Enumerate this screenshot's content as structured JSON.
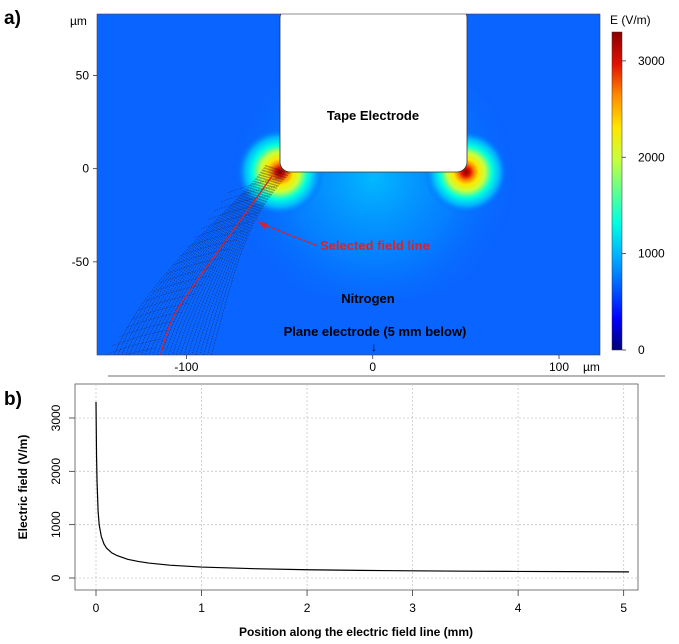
{
  "panel_a": {
    "label": "a)",
    "x_unit": "µm",
    "y_unit": "µm",
    "tape_label": "Tape Electrode",
    "gas_label": "Nitrogen",
    "plane_label": "Plane electrode (5 mm below)",
    "arrow_glyph": "↓",
    "field_line_label": "Selected field line",
    "field_line_color": "#e02020",
    "colorbar_title": "E (V/m)"
  },
  "panel_b": {
    "label": "b)",
    "line_color": "#000000",
    "grid_color": "#c8c8c8"
  },
  "chart_data": [
    {
      "type": "heatmap",
      "title": "",
      "xlabel": "",
      "ylabel": "",
      "x_unit": "µm",
      "y_unit": "µm",
      "xlim": [
        -148,
        122
      ],
      "ylim": [
        -100,
        83
      ],
      "x_ticks": [
        -100,
        0,
        100
      ],
      "y_ticks": [
        50,
        0,
        -50
      ],
      "x_tick_labels": [
        "-100",
        "0",
        "100"
      ],
      "y_tick_labels": [
        "50",
        "0",
        "-50"
      ],
      "colorbar": {
        "title": "E (V/m)",
        "range": [
          0,
          3300
        ],
        "ticks": [
          3000,
          2000,
          1000,
          0
        ],
        "colors": [
          "#00007a",
          "#0000ff",
          "#0060ff",
          "#00b4ff",
          "#00ffe0",
          "#60ff90",
          "#c8ff3c",
          "#ffe600",
          "#ff8c00",
          "#e01000",
          "#8a0000"
        ]
      },
      "background_field_value": 400,
      "hot_spots": [
        {
          "x": -48,
          "y": 0,
          "peak": 3300
        },
        {
          "x": 48,
          "y": 0,
          "peak": 3000
        }
      ],
      "tape_electrode": {
        "x_range": [
          -50,
          50
        ],
        "y_range": [
          0,
          83
        ]
      },
      "grid": false
    },
    {
      "type": "line",
      "title": "",
      "xlabel": "Position along the electric field line (mm)",
      "ylabel": "Electric field (V/m)",
      "xlim": [
        0,
        5.1
      ],
      "ylim": [
        0,
        3300
      ],
      "x_ticks": [
        0,
        1,
        2,
        3,
        4,
        5
      ],
      "y_ticks": [
        0,
        1000,
        2000,
        3000
      ],
      "grid": true,
      "series": [
        {
          "x": [
            0,
            0.005,
            0.01,
            0.02,
            0.03,
            0.05,
            0.075,
            0.1,
            0.15,
            0.2,
            0.3,
            0.4,
            0.5,
            0.7,
            1.0,
            1.5,
            2.0,
            2.5,
            3.0,
            3.5,
            4.0,
            4.5,
            5.05
          ],
          "y": [
            3300,
            2300,
            1800,
            1250,
            1000,
            780,
            640,
            560,
            470,
            420,
            350,
            310,
            280,
            240,
            205,
            175,
            155,
            143,
            135,
            128,
            123,
            119,
            115
          ]
        }
      ]
    }
  ]
}
